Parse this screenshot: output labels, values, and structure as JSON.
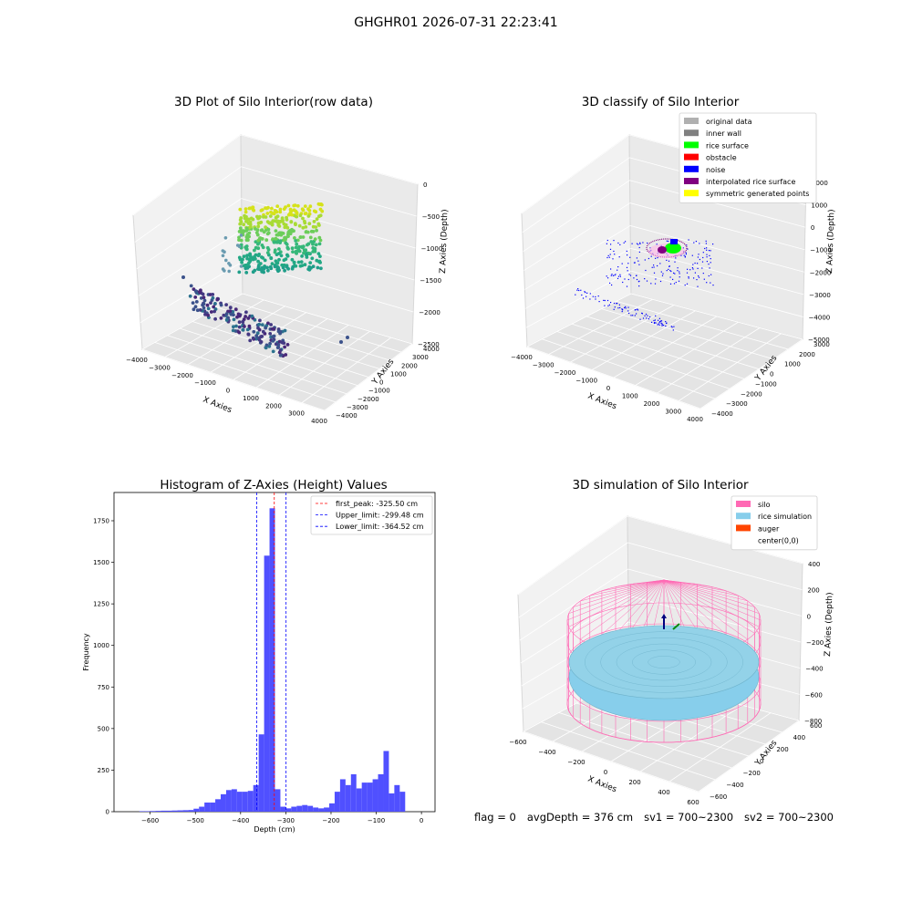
{
  "suptitle": "GHGHR01 2026-07-31 22:23:41",
  "footer": {
    "flag": "flag = 0",
    "avg_depth": "avgDepth = 376 cm",
    "sv1": "sv1 = 700~2300",
    "sv2": "sv2 = 700~2300"
  },
  "colors": {
    "hist_bar": "#5050ff",
    "first_peak": "#ff0000",
    "limits": "#0000ff",
    "silo": "#ff69b4",
    "rice": "#87ceeb",
    "auger": "#ff4500",
    "noise": "#0000ff",
    "rice_surface": "#00ff00",
    "interpolated": "#800080",
    "symmetric": "#ffff00",
    "inner_wall": "#808080",
    "original": "#b0b0b0"
  },
  "chart_data": [
    {
      "type": "scatter",
      "title": "3D Plot of Silo Interior(row data)",
      "xlabel": "X Axies",
      "ylabel": "Y Axies",
      "zlabel": "Z Axies (Depth)",
      "xticks": [
        "−4000",
        "−3000",
        "−2000",
        "−1000",
        "0",
        "1000",
        "2000",
        "3000",
        "4000"
      ],
      "yticks": [
        "−4000",
        "−3000",
        "−2000",
        "−1000",
        "0",
        "1000",
        "2000",
        "3000",
        "4000"
      ],
      "zticks": [
        "0",
        "−500",
        "−1000",
        "−1500",
        "−2000",
        "−2500"
      ]
    },
    {
      "type": "scatter",
      "title": "3D classify of Silo Interior",
      "xlabel": "X Axies",
      "ylabel": "Y Axies",
      "zlabel": "Z Axies (Depth)",
      "xticks": [
        "−4000",
        "−3000",
        "−2000",
        "−1000",
        "0",
        "1000",
        "2000",
        "3000",
        "4000"
      ],
      "yticks": [
        "−4000",
        "−3000",
        "−2000",
        "−1000",
        "0",
        "1000",
        "2000",
        "3000"
      ],
      "zticks": [
        "2000",
        "1000",
        "0",
        "−1000",
        "−2000",
        "−3000",
        "−4000",
        "−5000"
      ],
      "legend": [
        {
          "label": "original data",
          "color": "#b0b0b0"
        },
        {
          "label": "inner wall",
          "color": "#808080"
        },
        {
          "label": "rice surface",
          "color": "#00ff00"
        },
        {
          "label": "obstacle",
          "color": "#ff0000"
        },
        {
          "label": "noise",
          "color": "#0000ff"
        },
        {
          "label": "interpolated rice surface",
          "color": "#800080"
        },
        {
          "label": "symmetric generated points",
          "color": "#ffff00"
        }
      ]
    },
    {
      "type": "bar",
      "title": "Histogram of Z-Axies (Height) Values",
      "xlabel": "Depth (cm)",
      "ylabel": "Frequency",
      "xlim": [
        -680,
        30
      ],
      "ylim": [
        0,
        1920
      ],
      "xticks": [
        -600,
        -500,
        -400,
        -300,
        -200,
        -100,
        0
      ],
      "yticks": [
        0,
        250,
        500,
        750,
        1000,
        1250,
        1500,
        1750
      ],
      "bin_width": 12,
      "bins": [
        {
          "x0": -624,
          "count": 3
        },
        {
          "x0": -612,
          "count": 3
        },
        {
          "x0": -600,
          "count": 4
        },
        {
          "x0": -588,
          "count": 5
        },
        {
          "x0": -576,
          "count": 6
        },
        {
          "x0": -564,
          "count": 6
        },
        {
          "x0": -552,
          "count": 7
        },
        {
          "x0": -540,
          "count": 8
        },
        {
          "x0": -528,
          "count": 9
        },
        {
          "x0": -516,
          "count": 10
        },
        {
          "x0": -504,
          "count": 18
        },
        {
          "x0": -492,
          "count": 30
        },
        {
          "x0": -480,
          "count": 55
        },
        {
          "x0": -468,
          "count": 55
        },
        {
          "x0": -456,
          "count": 75
        },
        {
          "x0": -444,
          "count": 105
        },
        {
          "x0": -432,
          "count": 130
        },
        {
          "x0": -420,
          "count": 135
        },
        {
          "x0": -408,
          "count": 120
        },
        {
          "x0": -396,
          "count": 120
        },
        {
          "x0": -384,
          "count": 125
        },
        {
          "x0": -372,
          "count": 160
        },
        {
          "x0": -360,
          "count": 465
        },
        {
          "x0": -348,
          "count": 1540
        },
        {
          "x0": -336,
          "count": 1825
        },
        {
          "x0": -324,
          "count": 135
        },
        {
          "x0": -312,
          "count": 30
        },
        {
          "x0": -300,
          "count": 20
        },
        {
          "x0": -288,
          "count": 30
        },
        {
          "x0": -276,
          "count": 35
        },
        {
          "x0": -264,
          "count": 40
        },
        {
          "x0": -252,
          "count": 35
        },
        {
          "x0": -240,
          "count": 25
        },
        {
          "x0": -228,
          "count": 20
        },
        {
          "x0": -216,
          "count": 25
        },
        {
          "x0": -204,
          "count": 50
        },
        {
          "x0": -192,
          "count": 120
        },
        {
          "x0": -180,
          "count": 195
        },
        {
          "x0": -168,
          "count": 160
        },
        {
          "x0": -156,
          "count": 225
        },
        {
          "x0": -144,
          "count": 140
        },
        {
          "x0": -132,
          "count": 175
        },
        {
          "x0": -120,
          "count": 175
        },
        {
          "x0": -108,
          "count": 195
        },
        {
          "x0": -96,
          "count": 225
        },
        {
          "x0": -84,
          "count": 365
        },
        {
          "x0": -72,
          "count": 110
        },
        {
          "x0": -60,
          "count": 160
        },
        {
          "x0": -48,
          "count": 120
        }
      ],
      "vlines": [
        {
          "label": "first_peak: -325.50 cm",
          "x": -325.5,
          "color": "#ff0000"
        },
        {
          "label": "Upper_limit: -299.48 cm",
          "x": -299.48,
          "color": "#0000ff"
        },
        {
          "label": "Lower_limit: -364.52 cm",
          "x": -364.52,
          "color": "#0000ff"
        }
      ]
    },
    {
      "type": "scatter",
      "title": "3D simulation of Silo Interior",
      "xlabel": "X Axies",
      "ylabel": "Y Axies",
      "zlabel": "Z Axies (Depth)",
      "xticks": [
        "−600",
        "−400",
        "−200",
        "0",
        "200",
        "400",
        "600"
      ],
      "yticks": [
        "−600",
        "−400",
        "−200",
        "0",
        "200",
        "400",
        "600"
      ],
      "zticks": [
        "400",
        "200",
        "0",
        "−200",
        "−400",
        "−600",
        "−800"
      ],
      "legend": [
        {
          "label": "silo",
          "color": "#ff69b4"
        },
        {
          "label": "rice simulation",
          "color": "#87ceeb"
        },
        {
          "label": "auger",
          "color": "#ff4500"
        },
        {
          "label": "center(0,0)",
          "color": "#ffffff"
        }
      ]
    }
  ]
}
